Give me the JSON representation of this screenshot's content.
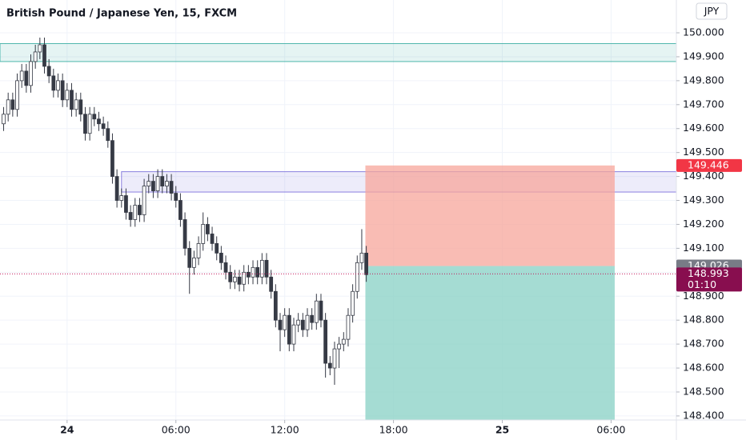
{
  "chart_data": {
    "type": "candlestick",
    "title": "British Pound / Japanese Yen, 15, FXCM",
    "currency": "JPY",
    "xlim": [
      -3.7,
      33.6
    ],
    "xticks": [
      {
        "value": 0,
        "label": "24"
      },
      {
        "value": 6,
        "label": "06:00"
      },
      {
        "value": 12,
        "label": "12:00"
      },
      {
        "value": 18,
        "label": "18:00"
      },
      {
        "value": 24,
        "label": "25"
      },
      {
        "value": 30,
        "label": "06:00"
      }
    ],
    "ylim": [
      148.383,
      150.137
    ],
    "yticks": [
      {
        "value": 148.4,
        "label": "148.400"
      },
      {
        "value": 148.5,
        "label": "148.500"
      },
      {
        "value": 148.6,
        "label": "148.600"
      },
      {
        "value": 148.7,
        "label": "148.700"
      },
      {
        "value": 148.8,
        "label": "148.800"
      },
      {
        "value": 148.9,
        "label": "148.900"
      },
      {
        "value": 149.0,
        "label": "149.000"
      },
      {
        "value": 149.1,
        "label": "149.100"
      },
      {
        "value": 149.2,
        "label": "149.200"
      },
      {
        "value": 149.3,
        "label": "149.300"
      },
      {
        "value": 149.4,
        "label": "149.400"
      },
      {
        "value": 149.5,
        "label": "149.500"
      },
      {
        "value": 149.6,
        "label": "149.600"
      },
      {
        "value": 149.7,
        "label": "149.700"
      },
      {
        "value": 149.8,
        "label": "149.800"
      },
      {
        "value": 149.9,
        "label": "149.900"
      },
      {
        "value": 150.0,
        "label": "150.000"
      }
    ],
    "grid": true,
    "up_color": "#ffffff",
    "down_color": "#363a45",
    "wick_color": "#363a45",
    "x": [
      -3.5,
      -3.25,
      -3,
      -2.75,
      -2.5,
      -2.25,
      -2,
      -1.75,
      -1.5,
      -1.25,
      -1,
      -0.75,
      -0.5,
      -0.25,
      0,
      0.25,
      0.5,
      0.75,
      1,
      1.25,
      1.5,
      1.75,
      2,
      2.25,
      2.5,
      2.75,
      3,
      3.25,
      3.5,
      3.75,
      4,
      4.25,
      4.5,
      4.75,
      5,
      5.25,
      5.5,
      5.75,
      6,
      6.25,
      6.5,
      6.75,
      7,
      7.25,
      7.5,
      7.75,
      8,
      8.25,
      8.5,
      8.75,
      9,
      9.25,
      9.5,
      9.75,
      10,
      10.25,
      10.5,
      10.75,
      11,
      11.25,
      11.5,
      11.75,
      12,
      12.25,
      12.5,
      12.75,
      13,
      13.25,
      13.5,
      13.75,
      14,
      14.25,
      14.5,
      14.75,
      15,
      15.25,
      15.5,
      15.75,
      16,
      16.25,
      16.5
    ],
    "open": [
      149.62,
      149.66,
      149.72,
      149.68,
      149.8,
      149.84,
      149.78,
      149.88,
      149.92,
      149.95,
      149.86,
      149.82,
      149.76,
      149.8,
      149.72,
      149.76,
      149.68,
      149.72,
      149.66,
      149.58,
      149.66,
      149.64,
      149.62,
      149.6,
      149.55,
      149.4,
      149.3,
      149.32,
      149.25,
      149.22,
      149.28,
      149.24,
      149.36,
      149.38,
      149.34,
      149.4,
      149.36,
      149.38,
      149.33,
      149.3,
      149.22,
      149.1,
      149.02,
      149.06,
      149.12,
      149.2,
      149.16,
      149.12,
      149.08,
      149.04,
      149.0,
      148.96,
      148.98,
      148.95,
      149.0,
      148.98,
      149.02,
      148.98,
      149.05,
      148.98,
      148.92,
      148.8,
      148.76,
      148.82,
      148.7,
      148.78,
      148.8,
      148.76,
      148.82,
      148.79,
      148.88,
      148.8,
      148.62,
      148.6,
      148.68,
      148.7,
      148.72,
      148.82,
      148.92,
      149.04,
      149.08
    ],
    "high": [
      149.69,
      149.75,
      149.75,
      149.83,
      149.87,
      149.87,
      149.91,
      149.95,
      149.98,
      149.98,
      149.89,
      149.85,
      149.83,
      149.83,
      149.79,
      149.79,
      149.75,
      149.75,
      149.69,
      149.69,
      149.69,
      149.67,
      149.65,
      149.63,
      149.58,
      149.43,
      149.35,
      149.35,
      149.28,
      149.31,
      149.31,
      149.39,
      149.41,
      149.41,
      149.43,
      149.43,
      149.41,
      149.41,
      149.36,
      149.33,
      149.25,
      149.13,
      149.09,
      149.15,
      149.25,
      149.23,
      149.19,
      149.15,
      149.11,
      149.07,
      149.03,
      149.01,
      149.01,
      149.03,
      149.03,
      149.05,
      149.05,
      149.08,
      149.08,
      149.01,
      148.95,
      148.83,
      148.85,
      148.85,
      148.81,
      148.83,
      148.83,
      148.85,
      148.85,
      148.91,
      148.91,
      148.83,
      148.65,
      148.71,
      148.73,
      148.75,
      148.85,
      148.95,
      149.07,
      149.18,
      149.11
    ],
    "low": [
      149.59,
      149.63,
      149.65,
      149.65,
      149.77,
      149.75,
      149.75,
      149.85,
      149.89,
      149.83,
      149.79,
      149.73,
      149.73,
      149.69,
      149.69,
      149.65,
      149.65,
      149.63,
      149.55,
      149.55,
      149.61,
      149.59,
      149.57,
      149.52,
      149.37,
      149.27,
      149.27,
      149.22,
      149.19,
      149.19,
      149.21,
      149.21,
      149.33,
      149.31,
      149.31,
      149.33,
      149.33,
      149.3,
      149.27,
      149.19,
      149.07,
      148.91,
      148.99,
      149.03,
      149.09,
      149.13,
      149.09,
      149.05,
      149.01,
      148.97,
      148.93,
      148.93,
      148.92,
      148.92,
      148.95,
      148.95,
      148.95,
      148.95,
      148.95,
      148.89,
      148.77,
      148.67,
      148.73,
      148.67,
      148.67,
      148.75,
      148.73,
      148.73,
      148.76,
      148.76,
      148.77,
      148.56,
      148.57,
      148.53,
      148.6,
      148.67,
      148.69,
      148.79,
      148.89,
      149.01,
      148.96
    ],
    "close": [
      149.66,
      149.72,
      149.68,
      149.8,
      149.84,
      149.78,
      149.88,
      149.92,
      149.95,
      149.86,
      149.82,
      149.76,
      149.8,
      149.72,
      149.76,
      149.68,
      149.72,
      149.66,
      149.58,
      149.66,
      149.64,
      149.62,
      149.6,
      149.55,
      149.4,
      149.3,
      149.32,
      149.25,
      149.22,
      149.28,
      149.24,
      149.36,
      149.38,
      149.34,
      149.4,
      149.36,
      149.38,
      149.33,
      149.3,
      149.22,
      149.1,
      149.02,
      149.06,
      149.12,
      149.2,
      149.16,
      149.12,
      149.08,
      149.04,
      149.0,
      148.96,
      148.98,
      148.95,
      149.0,
      148.98,
      149.02,
      148.98,
      149.05,
      148.98,
      148.92,
      148.8,
      148.76,
      148.82,
      148.7,
      148.78,
      148.8,
      148.76,
      148.82,
      148.79,
      148.88,
      148.8,
      148.62,
      148.6,
      148.68,
      148.7,
      148.72,
      148.82,
      148.92,
      149.04,
      149.08,
      148.99
    ],
    "zones": [
      {
        "low": 149.88,
        "high": 149.955,
        "x_start": -3.7,
        "color": "#26a69a"
      },
      {
        "low": 149.335,
        "high": 149.42,
        "x_start": 3,
        "color": "#6f63d8"
      }
    ],
    "position": {
      "x_start": 16.45,
      "x_end": 30.2,
      "stop": 149.446,
      "entry": 149.026,
      "target": 148.383,
      "stop_color": "#f7a69b",
      "target_color": "#8fd3c8"
    },
    "last_price": {
      "value": 148.993,
      "countdown": "01:10",
      "color": "#880e4f"
    }
  }
}
